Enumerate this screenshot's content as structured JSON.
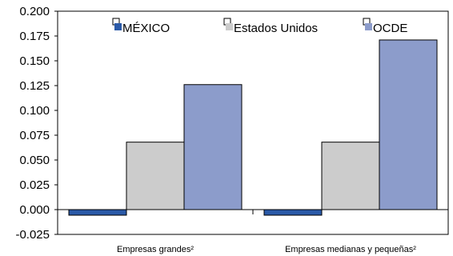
{
  "chart_data": {
    "type": "bar",
    "categories": [
      "Empresas grandes²",
      "Empresas medianas y pequeñas²"
    ],
    "series": [
      {
        "name": "MÉXICO",
        "values": [
          -0.003,
          -0.003
        ],
        "color": "#2b5aa8"
      },
      {
        "name": "Estados Unidos",
        "values": [
          0.068,
          0.068
        ],
        "color": "#cccccc"
      },
      {
        "name": "OCDE",
        "values": [
          0.126,
          0.171
        ],
        "color": "#8c9ccb"
      }
    ],
    "yticks": [
      "0.200",
      "0.175",
      "0.150",
      "0.125",
      "0.100",
      "0.075",
      "0.050",
      "0.025",
      "0.000",
      "-0.025"
    ],
    "ylim": [
      -0.025,
      0.2
    ],
    "grid": false,
    "legend_position": "top"
  }
}
